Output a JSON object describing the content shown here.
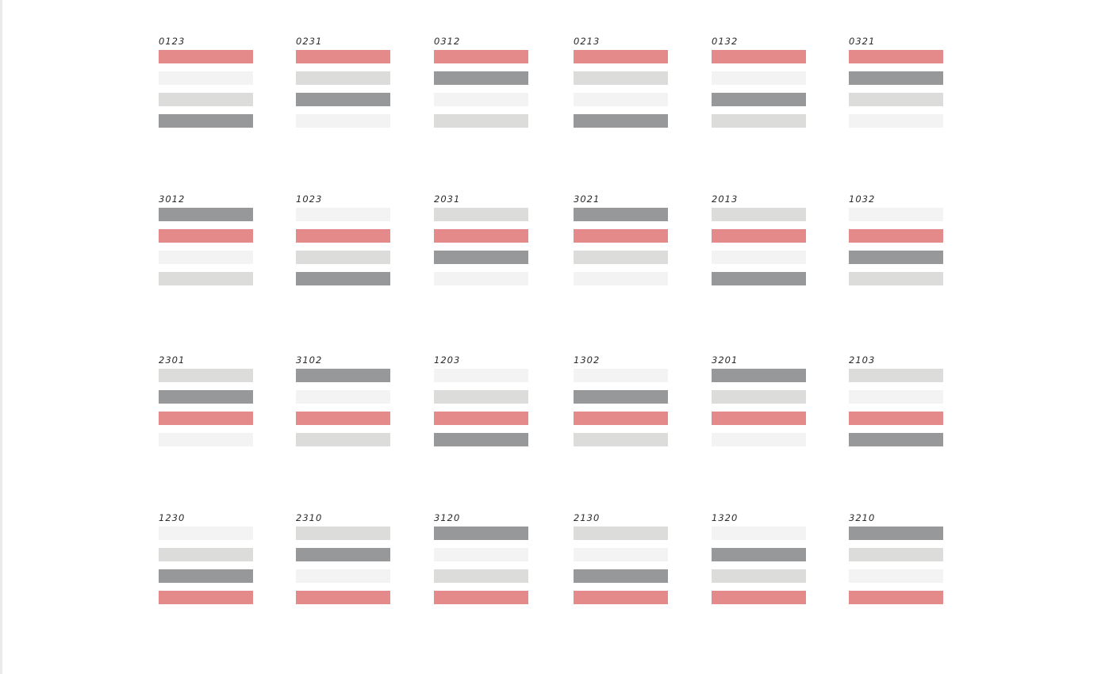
{
  "palette": {
    "0": "#e48a8a",
    "1": "#f3f3f4",
    "2": "#dcdcdb",
    "3": "#979899"
  },
  "palette_names": {
    "0": "coral-red",
    "1": "off-white",
    "2": "light-gray",
    "3": "medium-gray"
  },
  "groups": [
    {
      "label": "0123"
    },
    {
      "label": "0231"
    },
    {
      "label": "0312"
    },
    {
      "label": "0213"
    },
    {
      "label": "0132"
    },
    {
      "label": "0321"
    },
    {
      "label": "3012"
    },
    {
      "label": "1023"
    },
    {
      "label": "2031"
    },
    {
      "label": "3021"
    },
    {
      "label": "2013"
    },
    {
      "label": "1032"
    },
    {
      "label": "2301"
    },
    {
      "label": "3102"
    },
    {
      "label": "1203"
    },
    {
      "label": "1302"
    },
    {
      "label": "3201"
    },
    {
      "label": "2103"
    },
    {
      "label": "1230"
    },
    {
      "label": "2310"
    },
    {
      "label": "3120"
    },
    {
      "label": "2130"
    },
    {
      "label": "1320"
    },
    {
      "label": "3210"
    }
  ]
}
